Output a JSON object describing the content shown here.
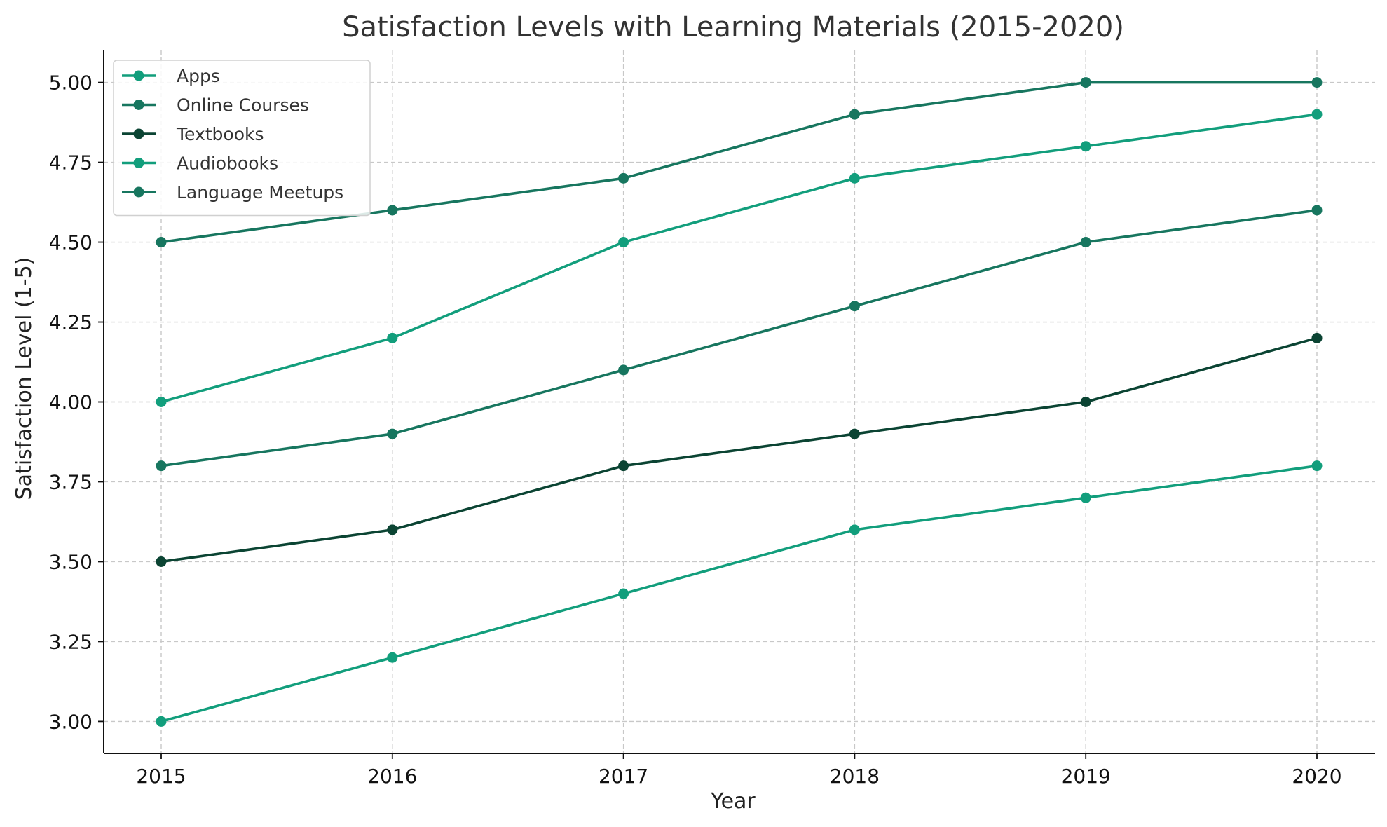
{
  "chart_data": {
    "type": "line",
    "title": "Satisfaction Levels with Learning Materials (2015-2020)",
    "xlabel": "Year",
    "ylabel": "Satisfaction Level (1-5)",
    "categories": [
      "2015",
      "2016",
      "2017",
      "2018",
      "2019",
      "2020"
    ],
    "ylim": [
      2.9,
      5.1
    ],
    "yticks": [
      "3.00",
      "3.25",
      "3.50",
      "3.75",
      "4.00",
      "4.25",
      "4.50",
      "4.75",
      "5.00"
    ],
    "grid": true,
    "legend_position": "top-left",
    "series": [
      {
        "name": "Apps",
        "color": "#129e7c",
        "values": [
          4.0,
          4.2,
          4.5,
          4.7,
          4.8,
          4.9
        ]
      },
      {
        "name": "Online Courses",
        "color": "#17765f",
        "values": [
          3.8,
          3.9,
          4.1,
          4.3,
          4.5,
          4.6
        ]
      },
      {
        "name": "Textbooks",
        "color": "#0b4433",
        "values": [
          3.5,
          3.6,
          3.8,
          3.9,
          4.0,
          4.2
        ]
      },
      {
        "name": "Audiobooks",
        "color": "#129e7c",
        "values": [
          3.0,
          3.2,
          3.4,
          3.6,
          3.7,
          3.8
        ]
      },
      {
        "name": "Language Meetups",
        "color": "#17765f",
        "values": [
          4.5,
          4.6,
          4.7,
          4.9,
          5.0,
          5.0
        ]
      }
    ]
  }
}
